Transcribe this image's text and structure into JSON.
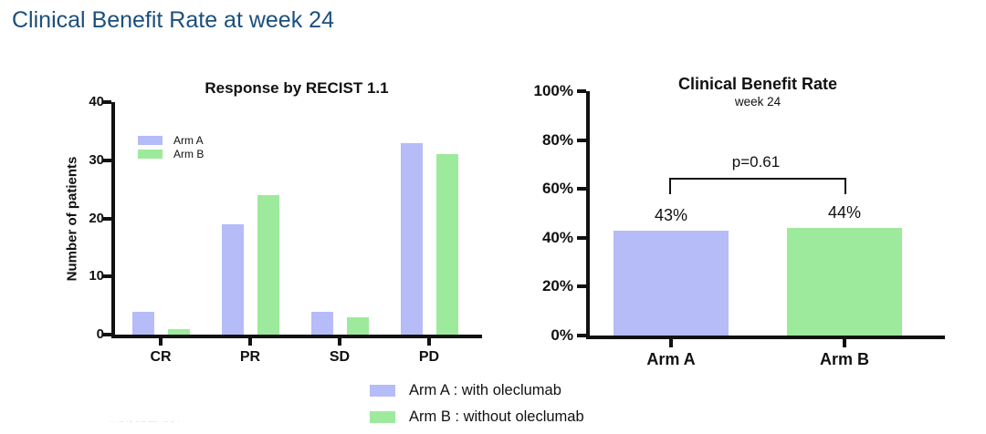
{
  "slide": {
    "title": "Clinical Benefit Rate at week 24",
    "title_color": "#1b4f7d",
    "watermark": "·· ·– ·– –·– ––· ·– – ·"
  },
  "colors": {
    "arm_a": "#b5bcf7",
    "arm_b": "#9eea9c",
    "axis": "#111111"
  },
  "chart_data": [
    {
      "type": "bar",
      "title": "Response by RECIST 1.1",
      "ylabel": "Number of patients",
      "xlabel": "",
      "categories": [
        "CR",
        "PR",
        "SD",
        "PD"
      ],
      "series": [
        {
          "name": "Arm A",
          "color": "#b5bcf7",
          "values": [
            4,
            19,
            4,
            33
          ]
        },
        {
          "name": "Arm B",
          "color": "#9eea9c",
          "values": [
            1,
            24,
            3,
            31
          ]
        }
      ],
      "ylim": [
        0,
        40
      ],
      "yticks": [
        0,
        10,
        20,
        30,
        40
      ],
      "legend_position": "inside-upper-left",
      "grid": false
    },
    {
      "type": "bar",
      "title": "Clinical Benefit Rate",
      "subtitle": "week 24",
      "categories": [
        "Arm A",
        "Arm B"
      ],
      "values": [
        43,
        44
      ],
      "value_labels": [
        "43%",
        "44%"
      ],
      "bar_colors": [
        "#b5bcf7",
        "#9eea9c"
      ],
      "ylim": [
        0,
        100
      ],
      "ytick_labels": [
        "0%",
        "20%",
        "40%",
        "60%",
        "80%",
        "100%"
      ],
      "annotation": {
        "text": "p=0.61",
        "type": "significance-bracket",
        "between": [
          "Arm A",
          "Arm B"
        ]
      },
      "grid": false
    }
  ],
  "footer_legend": {
    "items": [
      {
        "label": "Arm A : with oleclumab",
        "color": "#b5bcf7"
      },
      {
        "label": "Arm B : without oleclumab",
        "color": "#9eea9c"
      }
    ]
  }
}
